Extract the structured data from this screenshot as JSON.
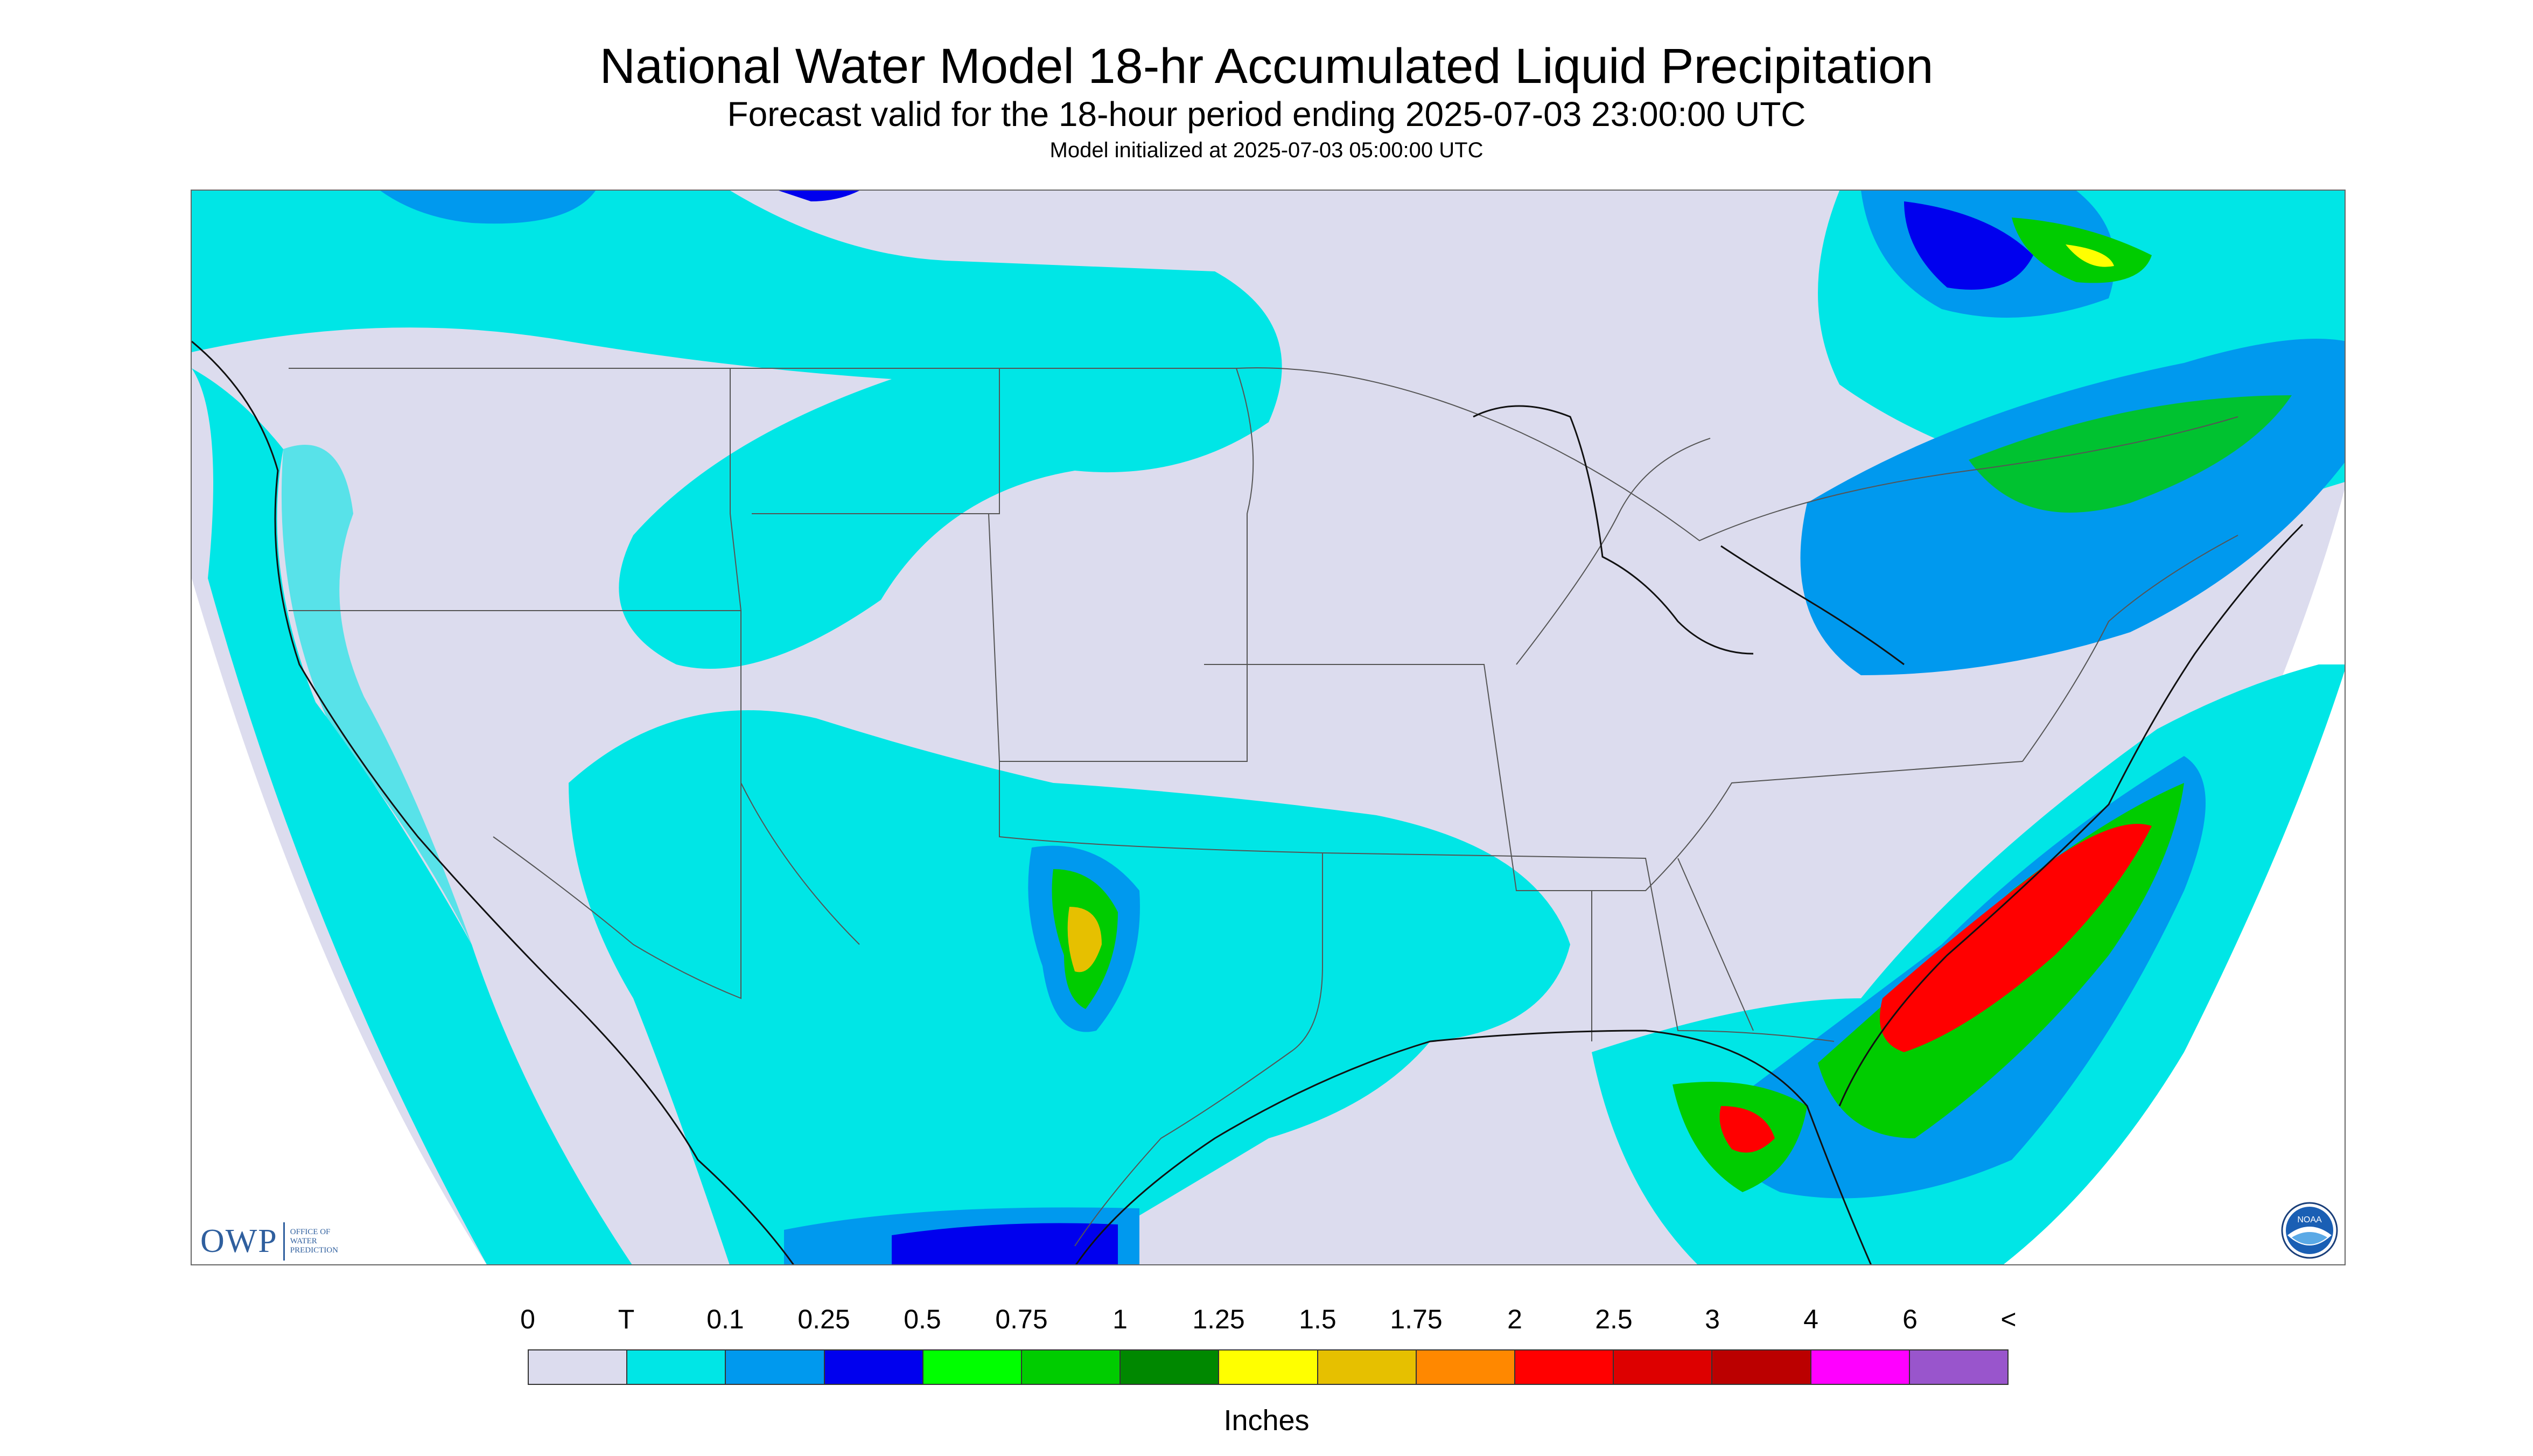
{
  "header": {
    "title": "National Water Model 18-hr Accumulated Liquid Precipitation",
    "subtitle": "Forecast valid for the 18-hour period ending 2025-07-03 23:00:00 UTC",
    "init": "Model initialized at 2025-07-03 05:00:00 UTC"
  },
  "logos": {
    "owp_mark": "OWP",
    "owp_text": "OFFICE OF WATER PREDICTION",
    "noaa_text": "NOAA"
  },
  "legend": {
    "labels": [
      "0",
      "T",
      "0.1",
      "0.25",
      "0.5",
      "0.75",
      "1",
      "1.25",
      "1.5",
      "1.75",
      "2",
      "2.5",
      "3",
      "4",
      "6",
      "<"
    ],
    "colors": [
      "#dcdcee",
      "#00e6e6",
      "#0099ee",
      "#0000ee",
      "#00ff00",
      "#00cc00",
      "#008800",
      "#ffff00",
      "#e6c000",
      "#ff8800",
      "#ff0000",
      "#dd0000",
      "#bb0000",
      "#ff00ff",
      "#9955cc"
    ],
    "units": "Inches"
  },
  "map": {
    "background": "#dcdcee",
    "outside_domain": "#ffffff",
    "shading_colors": {
      "trace": "#00e6e6",
      "light": "#0099ee",
      "moderate": "#0000ee",
      "green": "#00cc00",
      "heavy": "#ff0000"
    }
  }
}
